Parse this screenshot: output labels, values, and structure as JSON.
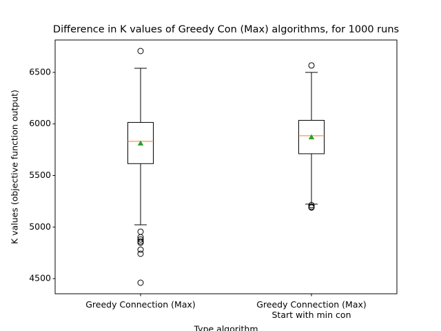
{
  "chart_data": {
    "type": "box",
    "title": "Difference in K values of Greedy Con (Max) algorithms, for 1000 runs",
    "x_label": "Type algorithm",
    "y_label": "K values (objective function output)",
    "categories": [
      "Greedy Connection (Max)",
      "Greedy Connection (Max)\nStart with min con"
    ],
    "boxes": [
      {
        "whislo": 5022,
        "q1": 5615,
        "med": 5831,
        "q3": 6015,
        "whishi": 6540,
        "mean": 5811,
        "fliers": [
          6707,
          4955,
          4901,
          4880,
          4860,
          4848,
          4781,
          4741,
          4460
        ]
      },
      {
        "whislo": 5222,
        "q1": 5711,
        "med": 5885,
        "q3": 6035,
        "whishi": 6500,
        "mean": 5871,
        "fliers": [
          6567,
          5212,
          5196,
          5189
        ]
      }
    ],
    "median_color": "#ff7f0e",
    "mean_color": "#2ca02c",
    "xlim": [
      0.5,
      2.5
    ],
    "ylim": [
      4353,
      6814
    ],
    "yticks": [
      4500,
      5000,
      5500,
      6000,
      6500
    ]
  }
}
